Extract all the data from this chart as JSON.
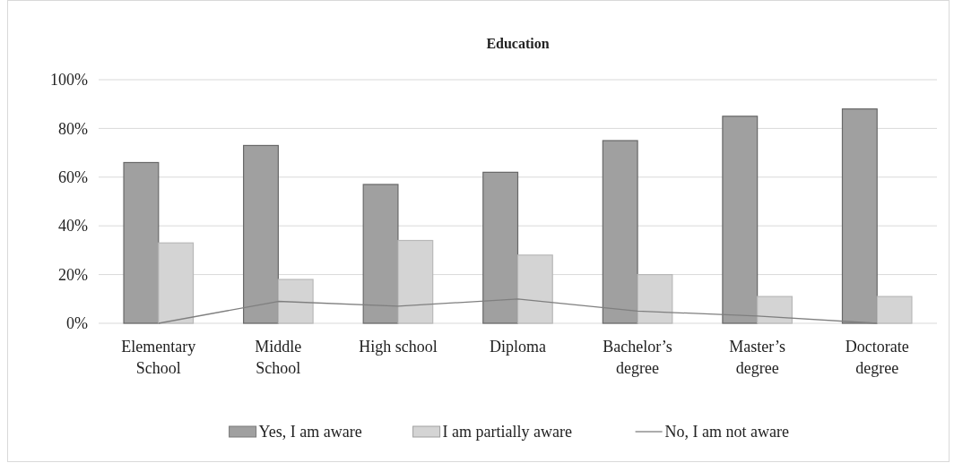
{
  "chart_data": {
    "type": "bar",
    "title": "Education",
    "categories": [
      "Elementary School",
      "Middle School",
      "High school",
      "Diploma",
      "Bachelor’s degree",
      "Master’s degree",
      "Doctorate degree"
    ],
    "series": [
      {
        "name": "Yes, I am aware",
        "color": "#a0a0a0",
        "values": [
          66,
          73,
          57,
          62,
          75,
          85,
          88
        ]
      },
      {
        "name": "I am partially aware",
        "color": "#d4d4d4",
        "values": [
          33,
          18,
          34,
          28,
          20,
          11,
          11
        ]
      },
      {
        "name": "No, I am not aware",
        "type": "line",
        "color": "#7f7f7f",
        "values": [
          0,
          9,
          7,
          10,
          5,
          3,
          0
        ]
      }
    ],
    "ylim": [
      0,
      100
    ],
    "yticks": [
      {
        "value": 0,
        "label": "0%"
      },
      {
        "value": 20,
        "label": "20%"
      },
      {
        "value": 40,
        "label": "40%"
      },
      {
        "value": 60,
        "label": "60%"
      },
      {
        "value": 80,
        "label": "80%"
      },
      {
        "value": 100,
        "label": "100%"
      }
    ],
    "grid": "y",
    "legend": "bottom",
    "marker": "none",
    "line_style": "solid"
  }
}
